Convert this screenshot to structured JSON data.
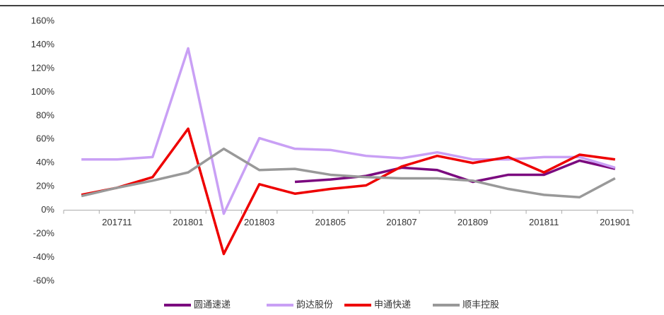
{
  "chart_data": {
    "type": "line",
    "categories": [
      null,
      "201711",
      null,
      "201801",
      null,
      "201803",
      null,
      "201805",
      null,
      "201807",
      null,
      "201809",
      null,
      "201811",
      null,
      "201901"
    ],
    "series": [
      {
        "name": "圆通速递",
        "color": "#7b0a7f",
        "values": [
          null,
          null,
          null,
          null,
          null,
          null,
          24,
          26,
          29,
          36,
          34,
          24,
          30,
          30,
          42,
          35
        ]
      },
      {
        "name": "韵达股份",
        "color": "#c9a0f5",
        "values": [
          43,
          43,
          45,
          137,
          -3,
          61,
          52,
          51,
          46,
          44,
          49,
          43,
          43,
          45,
          45,
          36
        ]
      },
      {
        "name": "申通快递",
        "color": "#ee0000",
        "values": [
          13,
          19,
          28,
          69,
          -37,
          22,
          14,
          18,
          21,
          37,
          46,
          40,
          45,
          32,
          47,
          43
        ]
      },
      {
        "name": "顺丰控股",
        "color": "#999999",
        "values": [
          12,
          19,
          25,
          32,
          52,
          34,
          35,
          30,
          28,
          27,
          27,
          25,
          18,
          13,
          11,
          27
        ]
      }
    ],
    "ylim": [
      -60,
      160
    ],
    "yticks": [
      {
        "value": -60,
        "label": "-60%"
      },
      {
        "value": -40,
        "label": "-40%"
      },
      {
        "value": -20,
        "label": "-20%"
      },
      {
        "value": 0,
        "label": "0%"
      },
      {
        "value": 20,
        "label": "20%"
      },
      {
        "value": 40,
        "label": "40%"
      },
      {
        "value": 60,
        "label": "60%"
      },
      {
        "value": 80,
        "label": "80%"
      },
      {
        "value": 100,
        "label": "100%"
      },
      {
        "value": 120,
        "label": "120%"
      },
      {
        "value": 140,
        "label": "140%"
      },
      {
        "value": 160,
        "label": "160%"
      }
    ],
    "legend": "bottom"
  }
}
